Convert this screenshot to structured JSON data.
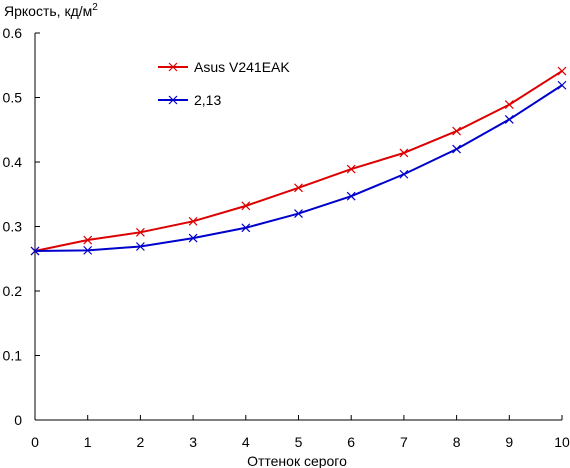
{
  "chart_data": {
    "type": "line",
    "title": "",
    "ylabel": "Яркость, кд/м",
    "ylabel_superscript": "2",
    "xlabel": "Оттенок серого",
    "xlim": [
      0,
      10
    ],
    "ylim": [
      0,
      0.6
    ],
    "x_ticks": [
      "0",
      "1",
      "2",
      "3",
      "4",
      "5",
      "6",
      "7",
      "8",
      "9",
      "10"
    ],
    "y_ticks": [
      "0",
      "0.1",
      "0.2",
      "0.3",
      "0.4",
      "0.5",
      "0.6"
    ],
    "grid": false,
    "legend_position": "top-left",
    "x": [
      0,
      1,
      2,
      3,
      4,
      5,
      6,
      7,
      8,
      9,
      10
    ],
    "series": [
      {
        "name": "Asus V241EAK",
        "color": "#dd0000",
        "marker": "x",
        "values": [
          0.262,
          0.279,
          0.291,
          0.308,
          0.332,
          0.36,
          0.389,
          0.414,
          0.448,
          0.489,
          0.541
        ]
      },
      {
        "name": "2,13",
        "color": "#0000cc",
        "marker": "x",
        "values": [
          0.262,
          0.263,
          0.269,
          0.282,
          0.298,
          0.32,
          0.347,
          0.381,
          0.42,
          0.466,
          0.519
        ]
      }
    ]
  }
}
